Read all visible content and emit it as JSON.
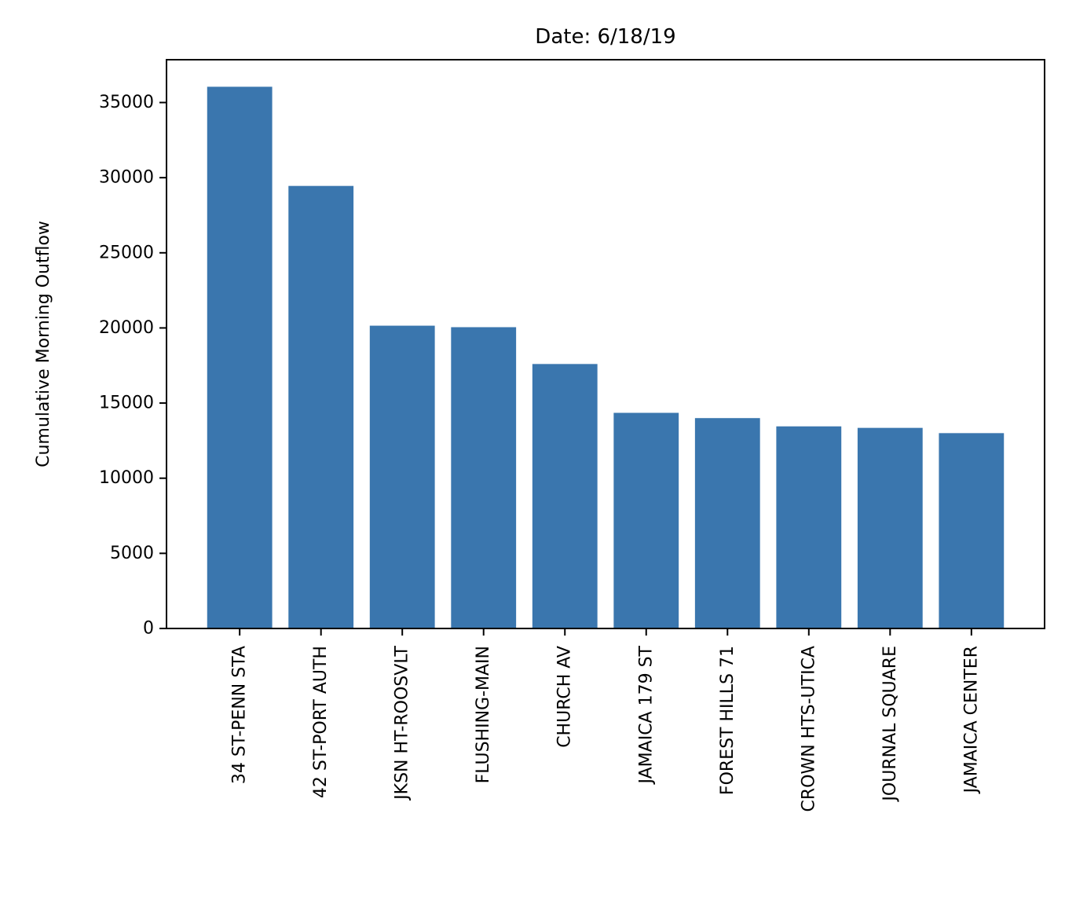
{
  "chart_data": {
    "type": "bar",
    "title": "Date: 6/18/19",
    "xlabel": "",
    "ylabel": "Cumulative Morning Outflow",
    "categories": [
      "34 ST-PENN STA",
      "42 ST-PORT AUTH",
      "JKSN HT-ROOSVLT",
      "FLUSHING-MAIN",
      "CHURCH AV",
      "JAMAICA 179 ST",
      "FOREST HILLS 71",
      "CROWN HTS-UTICA",
      "JOURNAL SQUARE",
      "JAMAICA CENTER"
    ],
    "values": [
      36050,
      29450,
      20150,
      20050,
      17600,
      14350,
      14000,
      13450,
      13350,
      13000
    ],
    "ylim": [
      0,
      37850
    ],
    "yticks": [
      0,
      5000,
      10000,
      15000,
      20000,
      25000,
      30000,
      35000
    ],
    "ytick_labels": [
      "0",
      "5000",
      "10000",
      "15000",
      "20000",
      "25000",
      "30000",
      "35000"
    ],
    "grid": false,
    "legend": "none",
    "colors": {
      "bar": "#3a76ae",
      "axis": "#000000"
    }
  }
}
